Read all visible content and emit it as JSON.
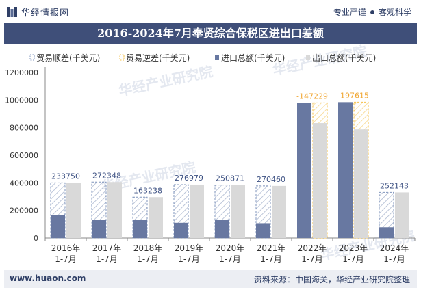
{
  "header": {
    "brand": "华经情报网",
    "tagline_left": "专业严谨",
    "tagline_right": "客观科学"
  },
  "watermark": "华经产业研究院",
  "footer": {
    "url": "www.huaon.com",
    "source": "资料来源：中国海关，华经产业研究院整理"
  },
  "colors": {
    "title_bg": "#3f4f79",
    "import_bar": "#6878a1",
    "export_bar": "#d9d9d9",
    "surplus_stroke": "#7f94bc",
    "deficit_stroke": "#f5c04a",
    "deficit_label": "#f0a630",
    "surplus_label": "#3f5384"
  },
  "chart_data": {
    "type": "bar",
    "title": "2016-2024年7月奉贤综合保税区进出口差额",
    "categories": [
      "2016年\n1-7月",
      "2017年\n1-7月",
      "2018年\n1-7月",
      "2019年\n1-7月",
      "2020年\n1-7月",
      "2021年\n1-7月",
      "2022年\n1-7月",
      "2023年\n1-7月",
      "2024年\n1-7月"
    ],
    "legend": [
      "贸易顺差(千美元)",
      "贸易逆差(千美元)",
      "进口总额(千美元)",
      "出口总额(千美元)"
    ],
    "series": [
      {
        "name": "进口总额(千美元)",
        "values": [
          166000,
          133000,
          133000,
          110000,
          133000,
          107000,
          980000,
          985000,
          78000
        ]
      },
      {
        "name": "出口总额(千美元)",
        "values": [
          399750,
          405348,
          296238,
          386979,
          383871,
          377460,
          832771,
          787385,
          330143
        ]
      }
    ],
    "balance": [
      233750,
      272348,
      163238,
      276979,
      250871,
      270460,
      -147229,
      -197615,
      252143
    ],
    "balance_labels": [
      "233750",
      "272348",
      "163238",
      "276979",
      "250871",
      "270460",
      "-147229",
      "-197615",
      "252143"
    ],
    "y_ticks": [
      "0",
      "200000",
      "400000",
      "600000",
      "800000",
      "1000000",
      "1200000"
    ],
    "ylim": [
      0,
      1200000
    ],
    "xlabel": "",
    "ylabel": ""
  }
}
